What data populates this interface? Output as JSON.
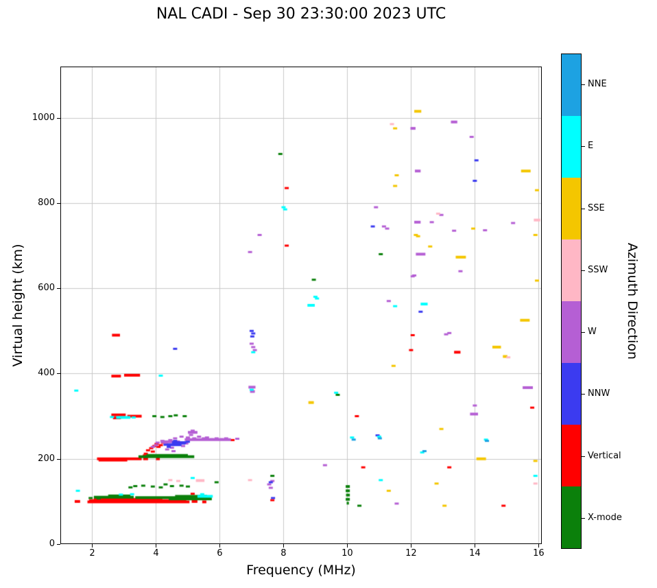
{
  "chart_data": {
    "type": "scatter",
    "title": "NAL CADI - Sep 30 23:30:00 2023 UTC",
    "xlabel": "Frequency (MHz)",
    "ylabel": "Virtual height (km)",
    "xlim": [
      1,
      16.1
    ],
    "ylim": [
      0,
      1120
    ],
    "xticks": [
      2,
      4,
      6,
      8,
      10,
      12,
      14,
      16
    ],
    "yticks": [
      0,
      200,
      400,
      600,
      800,
      1000
    ],
    "grid": true,
    "grid_color": "#c8c8c8",
    "marker": {
      "point_w": 6,
      "point_h": 3,
      "band_h": 4
    },
    "colorbar": {
      "title": "Azimuth Direction",
      "entries_top_to_bottom": [
        {
          "label": "NNE",
          "color": "#1da2e2"
        },
        {
          "label": "E",
          "color": "#00ffff"
        },
        {
          "label": "SSE",
          "color": "#f4c600"
        },
        {
          "label": "SSW",
          "color": "#ffb7c5"
        },
        {
          "label": "W",
          "color": "#b55fd4"
        },
        {
          "label": "NNW",
          "color": "#3b3bf0"
        },
        {
          "label": "Vertical",
          "color": "#ff0000"
        },
        {
          "label": "X-mode",
          "color": "#0b800b"
        }
      ]
    },
    "series": [
      {
        "name": "Vertical",
        "color": "#ff0000",
        "bands": [
          [
            1.45,
            1.62,
            100
          ],
          [
            1.85,
            5.05,
            99
          ],
          [
            1.9,
            4.95,
            102
          ],
          [
            2.05,
            4.2,
            105
          ],
          [
            5.12,
            5.3,
            100
          ],
          [
            5.45,
            5.58,
            99
          ],
          [
            2.15,
            3.55,
            200
          ],
          [
            2.2,
            3.1,
            197
          ],
          [
            3.6,
            3.75,
            200
          ],
          [
            4.0,
            4.12,
            200
          ],
          [
            2.6,
            3.05,
            303
          ],
          [
            3.1,
            3.55,
            300
          ],
          [
            2.65,
            2.9,
            296
          ],
          [
            2.6,
            2.9,
            394
          ],
          [
            3.0,
            3.5,
            396
          ],
          [
            2.62,
            2.87,
            490
          ],
          [
            13.35,
            13.55,
            450
          ]
        ],
        "points": [
          [
            3.6,
            205
          ],
          [
            3.68,
            212
          ],
          [
            3.75,
            220
          ],
          [
            3.85,
            225
          ],
          [
            3.9,
            217
          ],
          [
            3.95,
            230
          ],
          [
            4.02,
            235
          ],
          [
            4.08,
            228
          ],
          [
            4.15,
            232
          ],
          [
            4.22,
            238
          ],
          [
            4.3,
            240
          ],
          [
            3.65,
            208
          ],
          [
            5.15,
            118
          ],
          [
            6.4,
            244
          ],
          [
            7.65,
            103
          ],
          [
            8.1,
            835
          ],
          [
            8.1,
            700
          ],
          [
            10.3,
            300
          ],
          [
            10.5,
            180
          ],
          [
            12.0,
            455
          ],
          [
            12.05,
            490
          ],
          [
            13.2,
            180
          ],
          [
            14.9,
            90
          ],
          [
            15.8,
            320
          ]
        ]
      },
      {
        "name": "X-mode",
        "color": "#0b800b",
        "bands": [
          [
            2.05,
            3.3,
            110
          ],
          [
            3.35,
            5.7,
            109
          ],
          [
            2.5,
            3.2,
            113
          ],
          [
            4.4,
            5.75,
            106
          ],
          [
            4.6,
            5.6,
            112
          ],
          [
            3.45,
            5.2,
            205
          ],
          [
            3.7,
            5.0,
            208
          ],
          [
            9.95,
            10.08,
            135
          ],
          [
            9.95,
            10.08,
            125
          ],
          [
            9.96,
            10.08,
            115
          ],
          [
            9.95,
            10.08,
            105
          ],
          [
            9.98,
            10.05,
            96
          ]
        ],
        "points": [
          [
            1.95,
            108
          ],
          [
            2.2,
            107
          ],
          [
            3.2,
            133
          ],
          [
            3.35,
            136
          ],
          [
            3.6,
            137
          ],
          [
            3.9,
            135
          ],
          [
            4.15,
            133
          ],
          [
            4.3,
            140
          ],
          [
            4.5,
            136
          ],
          [
            4.8,
            137
          ],
          [
            5.0,
            135
          ],
          [
            3.95,
            300
          ],
          [
            4.2,
            298
          ],
          [
            4.45,
            300
          ],
          [
            4.62,
            302
          ],
          [
            4.9,
            300
          ],
          [
            5.9,
            145
          ],
          [
            7.65,
            160
          ],
          [
            7.9,
            915
          ],
          [
            8.95,
            620
          ],
          [
            9.7,
            350
          ],
          [
            10.38,
            90
          ],
          [
            11.05,
            680
          ]
        ]
      },
      {
        "name": "W",
        "color": "#b55fd4",
        "bands": [
          [
            4.15,
            4.75,
            240
          ],
          [
            4.9,
            6.35,
            245
          ],
          [
            5.0,
            5.3,
            262
          ],
          [
            6.9,
            7.12,
            368
          ],
          [
            6.95,
            7.1,
            358
          ],
          [
            11.98,
            12.14,
            975
          ],
          [
            12.12,
            12.3,
            875
          ],
          [
            12.15,
            12.45,
            680
          ],
          [
            12.1,
            12.3,
            755
          ],
          [
            13.25,
            13.45,
            990
          ],
          [
            13.85,
            14.1,
            305
          ],
          [
            15.5,
            15.82,
            367
          ]
        ],
        "points": [
          [
            3.9,
            228
          ],
          [
            4.0,
            232
          ],
          [
            4.05,
            238
          ],
          [
            4.2,
            242
          ],
          [
            4.3,
            236
          ],
          [
            4.35,
            222
          ],
          [
            4.45,
            244
          ],
          [
            4.5,
            226
          ],
          [
            4.55,
            218
          ],
          [
            4.6,
            248
          ],
          [
            4.7,
            238
          ],
          [
            4.8,
            252
          ],
          [
            4.85,
            230
          ],
          [
            4.95,
            236
          ],
          [
            5.0,
            250
          ],
          [
            5.1,
            256
          ],
          [
            5.15,
            266
          ],
          [
            5.2,
            248
          ],
          [
            5.35,
            252
          ],
          [
            5.5,
            248
          ],
          [
            5.6,
            250
          ],
          [
            5.75,
            246
          ],
          [
            5.9,
            248
          ],
          [
            6.05,
            246
          ],
          [
            6.2,
            248
          ],
          [
            6.55,
            247
          ],
          [
            6.95,
            685
          ],
          [
            7.25,
            725
          ],
          [
            7.0,
            470
          ],
          [
            7.05,
            462
          ],
          [
            7.1,
            455
          ],
          [
            7.55,
            140
          ],
          [
            7.6,
            132
          ],
          [
            7.65,
            148
          ],
          [
            9.3,
            185
          ],
          [
            10.9,
            790
          ],
          [
            11.15,
            745
          ],
          [
            11.25,
            740
          ],
          [
            11.3,
            570
          ],
          [
            11.55,
            95
          ],
          [
            12.1,
            630
          ],
          [
            12.05,
            628
          ],
          [
            12.65,
            755
          ],
          [
            12.95,
            772
          ],
          [
            13.35,
            735
          ],
          [
            13.55,
            640
          ],
          [
            13.2,
            495
          ],
          [
            13.1,
            492
          ],
          [
            13.9,
            955
          ],
          [
            14.0,
            325
          ],
          [
            14.32,
            736
          ],
          [
            15.2,
            753
          ]
        ]
      },
      {
        "name": "NNW",
        "color": "#3b3bf0",
        "bands": [
          [
            4.35,
            4.8,
            233
          ],
          [
            4.5,
            4.95,
            238
          ]
        ],
        "points": [
          [
            4.4,
            228
          ],
          [
            4.6,
            242
          ],
          [
            4.85,
            236
          ],
          [
            5.0,
            240
          ],
          [
            4.3,
            233
          ],
          [
            4.6,
            458
          ],
          [
            7.0,
            500
          ],
          [
            7.05,
            494
          ],
          [
            7.02,
            487
          ],
          [
            7.6,
            145
          ],
          [
            7.67,
            108
          ],
          [
            10.8,
            745
          ],
          [
            10.95,
            255
          ],
          [
            12.3,
            545
          ],
          [
            14.05,
            900
          ],
          [
            14.0,
            852
          ]
        ]
      },
      {
        "name": "E",
        "color": "#00ffff",
        "bands": [
          [
            2.75,
            3.2,
            297
          ],
          [
            5.3,
            5.78,
            112
          ],
          [
            8.75,
            8.98,
            560
          ],
          [
            12.3,
            12.52,
            563
          ]
        ],
        "points": [
          [
            1.5,
            360
          ],
          [
            1.55,
            125
          ],
          [
            2.62,
            298
          ],
          [
            3.3,
            297
          ],
          [
            2.9,
            116
          ],
          [
            3.25,
            117
          ],
          [
            5.15,
            155
          ],
          [
            5.45,
            117
          ],
          [
            4.15,
            395
          ],
          [
            7.0,
            362
          ],
          [
            7.05,
            450
          ],
          [
            8.0,
            790
          ],
          [
            8.05,
            785
          ],
          [
            9.0,
            580
          ],
          [
            9.05,
            576
          ],
          [
            9.65,
            355
          ],
          [
            10.15,
            250
          ],
          [
            11.0,
            252
          ],
          [
            11.05,
            150
          ],
          [
            11.5,
            558
          ],
          [
            12.35,
            215
          ],
          [
            14.35,
            245
          ],
          [
            15.9,
            160
          ]
        ]
      },
      {
        "name": "NNE",
        "color": "#1da2e2",
        "bands": [],
        "points": [
          [
            10.2,
            245
          ],
          [
            11.02,
            248
          ],
          [
            12.42,
            218
          ],
          [
            14.38,
            242
          ]
        ]
      },
      {
        "name": "SSE",
        "color": "#f4c600",
        "bands": [
          [
            8.78,
            8.95,
            332
          ],
          [
            12.1,
            12.32,
            1015
          ],
          [
            13.4,
            13.72,
            673
          ],
          [
            14.05,
            14.35,
            200
          ],
          [
            14.55,
            14.82,
            462
          ],
          [
            14.88,
            15.02,
            440
          ],
          [
            15.42,
            15.72,
            525
          ],
          [
            15.45,
            15.75,
            875
          ]
        ],
        "points": [
          [
            11.3,
            125
          ],
          [
            11.45,
            418
          ],
          [
            11.5,
            840
          ],
          [
            11.55,
            865
          ],
          [
            11.5,
            975
          ],
          [
            12.15,
            725
          ],
          [
            12.22,
            722
          ],
          [
            12.6,
            698
          ],
          [
            12.8,
            142
          ],
          [
            12.95,
            270
          ],
          [
            13.05,
            90
          ],
          [
            13.95,
            740
          ],
          [
            15.95,
            830
          ],
          [
            15.9,
            725
          ],
          [
            15.95,
            618
          ],
          [
            15.9,
            195
          ]
        ]
      },
      {
        "name": "SSW",
        "color": "#ffb7c5",
        "bands": [
          [
            5.25,
            5.52,
            149
          ],
          [
            15.85,
            16.05,
            760
          ]
        ],
        "points": [
          [
            4.45,
            150
          ],
          [
            4.7,
            148
          ],
          [
            6.95,
            150
          ],
          [
            11.4,
            985
          ],
          [
            12.85,
            775
          ],
          [
            15.05,
            438
          ],
          [
            15.9,
            142
          ]
        ]
      }
    ]
  }
}
